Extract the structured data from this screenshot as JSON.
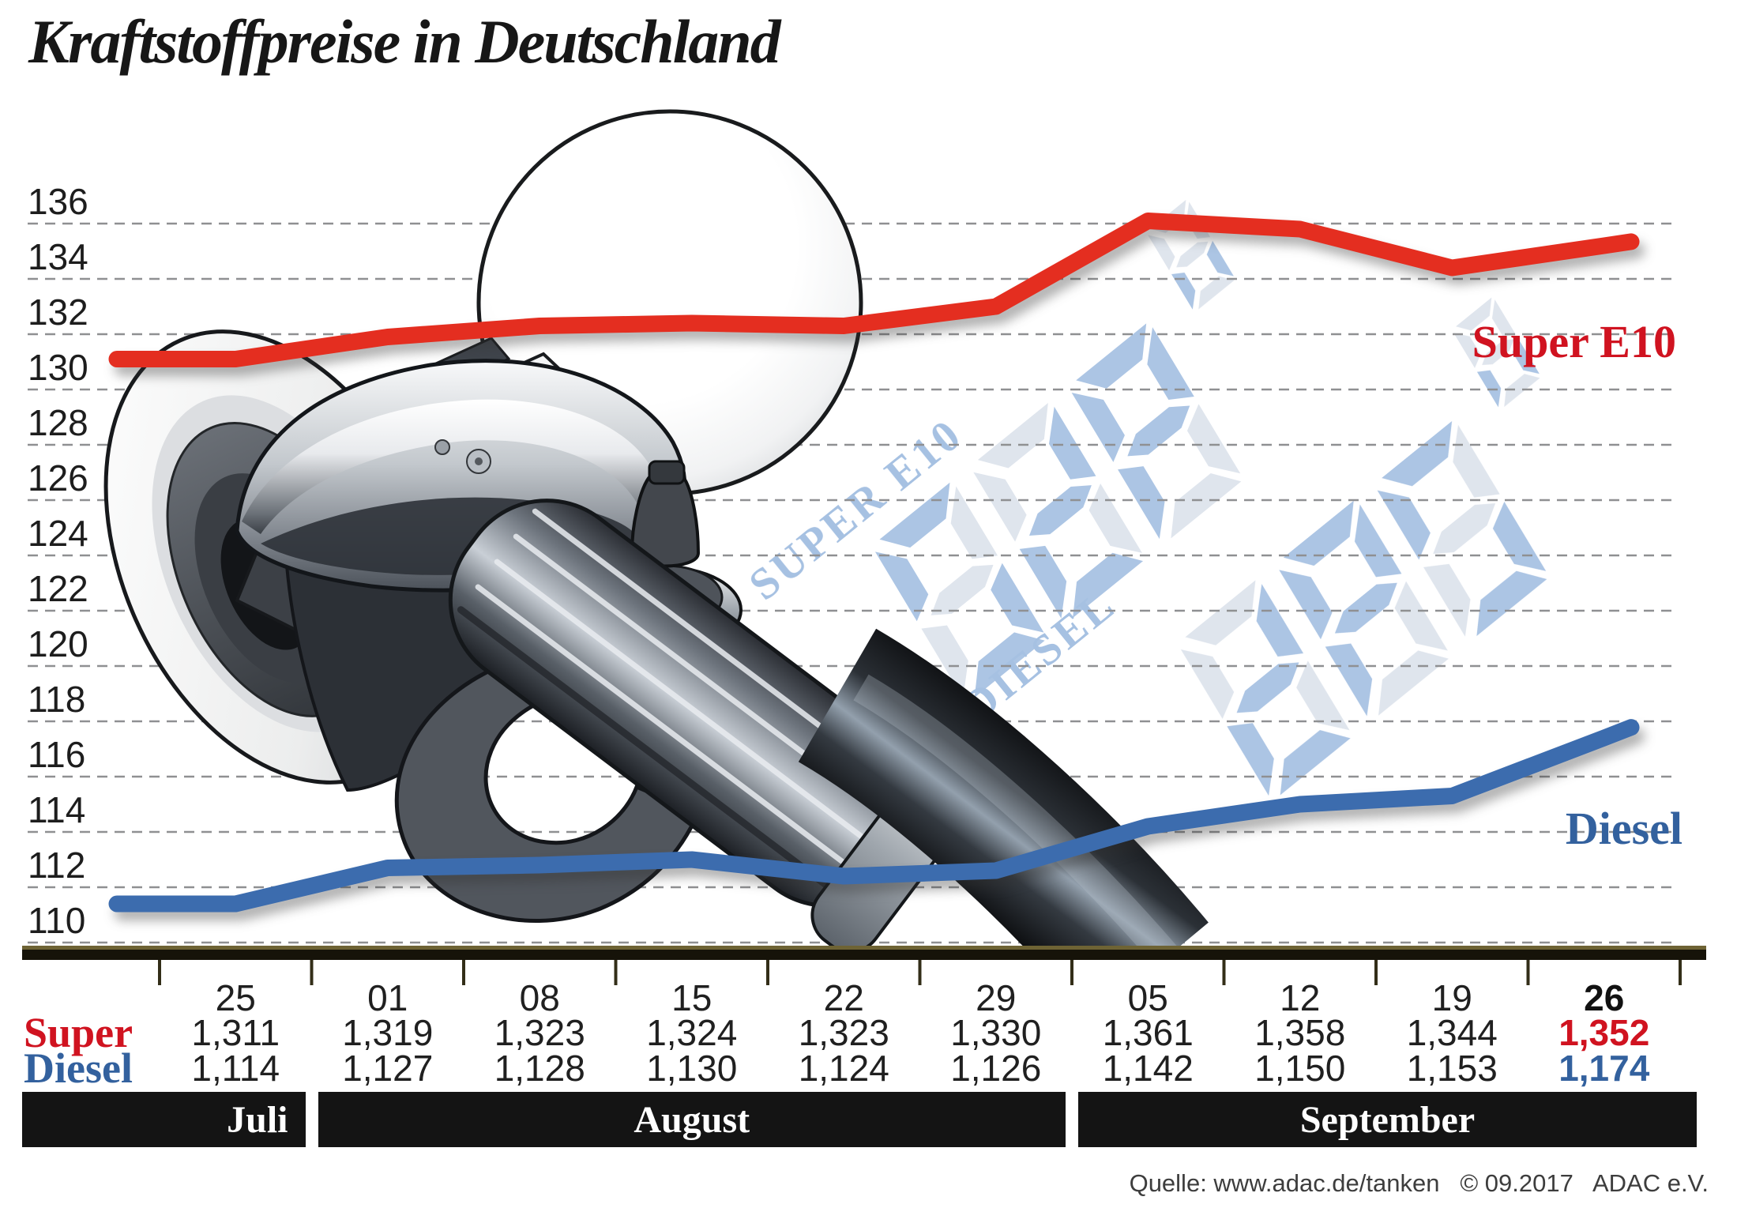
{
  "title": "Kraftstoffpreise in Deutschland",
  "source": "Quelle: www.adac.de/tanken   © 09.2017   ADAC e.V.",
  "watermark": {
    "super_label": "SUPER E10",
    "diesel_label": "DIESEL",
    "digits": "888",
    "digit_small": "8"
  },
  "colors": {
    "super_line": "#e42e20",
    "super_accent": "#d01320",
    "diesel_line": "#3c6cae",
    "diesel_accent": "#33619e",
    "grid": "#8f9092",
    "axis_bar": "#161309",
    "axis_topline": "#6e6334",
    "tick": "#332e18",
    "band_bg": "#141414",
    "band_text": "#ffffff",
    "watermark_blue": "#a5c0e2",
    "watermark_pale": "#dde3ec",
    "watermark_text": "#9fbce0",
    "number_text": "#202020"
  },
  "chart_data": {
    "type": "line",
    "title": "Kraftstoffpreise in Deutschland",
    "ylabel": "",
    "xlabel": "",
    "ylim": [
      110,
      136
    ],
    "y_ticks": [
      136,
      134,
      132,
      130,
      128,
      126,
      124,
      122,
      120,
      118,
      116,
      114,
      112,
      110
    ],
    "grid": "horizontal dashed",
    "legend_position": "right edge of lines",
    "x_labels": [
      "25",
      "01",
      "08",
      "15",
      "22",
      "29",
      "05",
      "12",
      "19",
      "26"
    ],
    "x_months": [
      {
        "label": "Juli",
        "points": 1,
        "align": "right"
      },
      {
        "label": "August",
        "points": 5,
        "align": "center"
      },
      {
        "label": "September",
        "points": 4,
        "align": "center"
      }
    ],
    "series": [
      {
        "name": "Super E10",
        "short_label": "Super",
        "color": "#e42e20",
        "values_cent": [
          131.1,
          131.9,
          132.3,
          132.4,
          132.3,
          133.0,
          136.1,
          135.8,
          134.4,
          135.2
        ],
        "values_text": [
          "1,311",
          "1,319",
          "1,323",
          "1,324",
          "1,323",
          "1,330",
          "1,361",
          "1,358",
          "1,344",
          "1,352"
        ]
      },
      {
        "name": "Diesel",
        "short_label": "Diesel",
        "color": "#3c6cae",
        "values_cent": [
          111.4,
          112.7,
          112.8,
          113.0,
          112.4,
          112.6,
          114.2,
          115.0,
          115.3,
          117.4
        ],
        "values_text": [
          "1,114",
          "1,127",
          "1,128",
          "1,130",
          "1,124",
          "1,126",
          "1,142",
          "1,150",
          "1,153",
          "1,174"
        ]
      }
    ],
    "highlight_last_column": true
  }
}
